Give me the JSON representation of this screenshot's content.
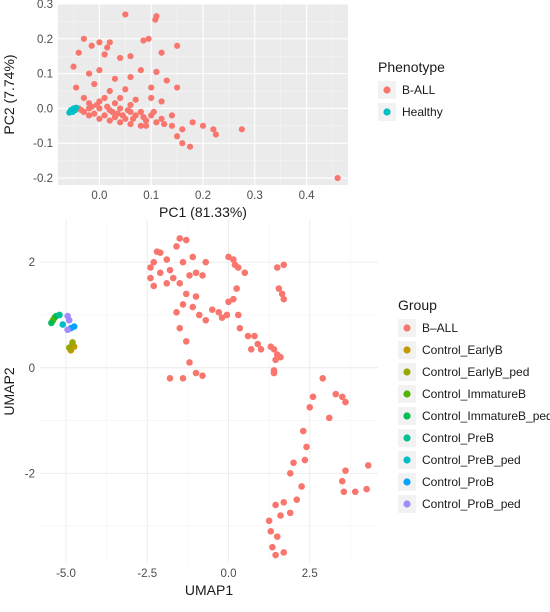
{
  "chart_data": [
    {
      "type": "scatter",
      "xlabel": "PC1 (81.33%)",
      "ylabel": "PC2 (7.74%)",
      "xlim": [
        -0.08,
        0.48
      ],
      "ylim": [
        -0.22,
        0.3
      ],
      "x_ticks": [
        0.0,
        0.1,
        0.2,
        0.3,
        0.4
      ],
      "x_tick_labels": [
        "0.0",
        "0.1",
        "0.2",
        "0.3",
        "0.4"
      ],
      "y_ticks": [
        -0.2,
        -0.1,
        0.0,
        0.1,
        0.2,
        0.3
      ],
      "y_tick_labels": [
        "-0.2",
        "-0.1",
        "0.0",
        "0.1",
        "0.2",
        "0.3"
      ],
      "grid": true,
      "legend": {
        "title": "Phenotype",
        "position": "right"
      },
      "series": [
        {
          "name": "B-ALL",
          "color": "#F8766D",
          "points": [
            [
              0.05,
              0.27
            ],
            [
              0.11,
              0.265
            ],
            [
              0.108,
              0.255
            ],
            [
              -0.03,
              0.2
            ],
            [
              0.0,
              0.19
            ],
            [
              0.02,
              0.19
            ],
            [
              -0.015,
              0.18
            ],
            [
              0.015,
              0.175
            ],
            [
              0.085,
              0.195
            ],
            [
              0.095,
              0.2
            ],
            [
              0.15,
              0.18
            ],
            [
              -0.04,
              0.16
            ],
            [
              0.01,
              0.155
            ],
            [
              0.04,
              0.145
            ],
            [
              0.06,
              0.15
            ],
            [
              0.12,
              0.16
            ],
            [
              0.08,
              0.11
            ],
            [
              0.11,
              0.105
            ],
            [
              -0.05,
              0.12
            ],
            [
              -0.02,
              0.1
            ],
            [
              0.0,
              0.11
            ],
            [
              0.03,
              0.085
            ],
            [
              0.06,
              0.09
            ],
            [
              0.13,
              0.08
            ],
            [
              -0.045,
              0.06
            ],
            [
              -0.01,
              0.07
            ],
            [
              0.02,
              0.05
            ],
            [
              0.05,
              0.055
            ],
            [
              0.1,
              0.06
            ],
            [
              0.15,
              0.06
            ],
            [
              -0.03,
              0.03
            ],
            [
              0.01,
              0.03
            ],
            [
              0.04,
              0.03
            ],
            [
              0.07,
              0.025
            ],
            [
              0.1,
              0.03
            ],
            [
              0.12,
              0.02
            ],
            [
              0.0,
              0.02
            ],
            [
              -0.02,
              0.015
            ],
            [
              0.03,
              0.015
            ],
            [
              0.06,
              0.01
            ],
            [
              -0.04,
              0.0
            ],
            [
              -0.02,
              0.0
            ],
            [
              0.0,
              0.0
            ],
            [
              0.02,
              -0.005
            ],
            [
              0.04,
              0.0
            ],
            [
              0.06,
              -0.01
            ],
            [
              0.08,
              -0.01
            ],
            [
              0.1,
              -0.02
            ],
            [
              0.12,
              -0.03
            ],
            [
              0.14,
              -0.02
            ],
            [
              -0.03,
              -0.01
            ],
            [
              -0.01,
              -0.015
            ],
            [
              0.01,
              -0.02
            ],
            [
              0.03,
              -0.025
            ],
            [
              0.05,
              -0.03
            ],
            [
              0.07,
              -0.02
            ],
            [
              0.09,
              -0.035
            ],
            [
              0.11,
              -0.04
            ],
            [
              -0.02,
              -0.02
            ],
            [
              0.0,
              -0.03
            ],
            [
              0.02,
              -0.035
            ],
            [
              0.04,
              -0.04
            ],
            [
              0.06,
              -0.045
            ],
            [
              0.08,
              -0.05
            ],
            [
              -0.015,
              0.005
            ],
            [
              -0.035,
              -0.005
            ],
            [
              0.015,
              0.005
            ],
            [
              0.035,
              -0.015
            ],
            [
              0.055,
              -0.005
            ],
            [
              0.025,
              -0.01
            ],
            [
              -0.005,
              0.01
            ],
            [
              0.045,
              -0.02
            ],
            [
              0.065,
              -0.03
            ],
            [
              0.085,
              -0.025
            ],
            [
              0.105,
              -0.01
            ],
            [
              0.125,
              -0.045
            ],
            [
              0.14,
              -0.05
            ],
            [
              0.16,
              -0.06
            ],
            [
              0.18,
              -0.04
            ],
            [
              0.2,
              -0.05
            ],
            [
              0.15,
              -0.08
            ],
            [
              0.16,
              -0.1
            ],
            [
              0.175,
              -0.11
            ],
            [
              0.22,
              -0.06
            ],
            [
              0.225,
              -0.075
            ],
            [
              0.275,
              -0.06
            ],
            [
              0.46,
              -0.2
            ],
            [
              0.09,
              -0.05
            ]
          ]
        },
        {
          "name": "Healthy",
          "color": "#00BFC4",
          "points": [
            [
              -0.055,
              -0.005
            ],
            [
              -0.05,
              0.0
            ],
            [
              -0.052,
              -0.01
            ],
            [
              -0.047,
              -0.005
            ],
            [
              -0.058,
              -0.012
            ],
            [
              -0.045,
              0.002
            ]
          ]
        }
      ]
    },
    {
      "type": "scatter",
      "xlabel": "UMAP1",
      "ylabel": "UMAP2",
      "xlim": [
        -5.8,
        4.6
      ],
      "ylim": [
        -3.7,
        2.8
      ],
      "x_ticks": [
        -5.0,
        -2.5,
        0.0,
        2.5
      ],
      "x_tick_labels": [
        "-5.0",
        "-2.5",
        "0.0",
        "2.5"
      ],
      "y_ticks": [
        -2,
        0,
        2
      ],
      "y_tick_labels": [
        "-2",
        "0",
        "2"
      ],
      "grid": true,
      "legend": {
        "title": "Group",
        "position": "right"
      },
      "series": [
        {
          "name": "B–ALL",
          "color": "#F8766D",
          "points": [
            [
              -2.2,
              2.2
            ],
            [
              -2.1,
              2.18
            ],
            [
              -1.5,
              2.45
            ],
            [
              -1.3,
              2.42
            ],
            [
              -1.6,
              2.3
            ],
            [
              -1.9,
              2.05
            ],
            [
              -2.3,
              2.0
            ],
            [
              -2.4,
              1.9
            ],
            [
              -1.8,
              1.85
            ],
            [
              -1.4,
              2.0
            ],
            [
              -1.1,
              2.1
            ],
            [
              -0.7,
              2.0
            ],
            [
              -2.1,
              1.8
            ],
            [
              -2.4,
              1.7
            ],
            [
              -1.7,
              1.7
            ],
            [
              -1.2,
              1.75
            ],
            [
              -1.0,
              1.8
            ],
            [
              -1.5,
              1.6
            ],
            [
              -2.3,
              1.55
            ],
            [
              -1.9,
              1.6
            ],
            [
              -0.8,
              1.75
            ],
            [
              -1.3,
              1.4
            ],
            [
              -1.0,
              1.35
            ],
            [
              -1.4,
              1.2
            ],
            [
              -1.1,
              1.15
            ],
            [
              -1.6,
              1.05
            ],
            [
              -0.9,
              1.0
            ],
            [
              -0.5,
              1.1
            ],
            [
              -0.3,
              1.05
            ],
            [
              -0.7,
              0.9
            ],
            [
              -0.2,
              0.95
            ],
            [
              -0.05,
              1.0
            ],
            [
              -1.5,
              0.75
            ],
            [
              -1.3,
              0.5
            ],
            [
              -1.2,
              0.1
            ],
            [
              -1.4,
              -0.2
            ],
            [
              -1.8,
              -0.2
            ],
            [
              -0.8,
              -0.15
            ],
            [
              -1.0,
              -0.1
            ],
            [
              0.0,
              2.1
            ],
            [
              0.15,
              2.05
            ],
            [
              0.2,
              1.95
            ],
            [
              0.3,
              1.9
            ],
            [
              0.5,
              1.8
            ],
            [
              0.25,
              1.5
            ],
            [
              0.15,
              1.3
            ],
            [
              0.0,
              1.25
            ],
            [
              0.3,
              1.0
            ],
            [
              0.35,
              0.75
            ],
            [
              0.6,
              0.6
            ],
            [
              0.8,
              0.6
            ],
            [
              0.7,
              0.35
            ],
            [
              1.0,
              0.35
            ],
            [
              0.9,
              0.45
            ],
            [
              1.3,
              0.4
            ],
            [
              1.4,
              0.35
            ],
            [
              1.45,
              0.15
            ],
            [
              1.5,
              0.25
            ],
            [
              1.6,
              0.2
            ],
            [
              1.5,
              1.9
            ],
            [
              1.7,
              1.95
            ],
            [
              1.55,
              1.5
            ],
            [
              1.65,
              1.4
            ],
            [
              1.7,
              1.3
            ],
            [
              1.4,
              -0.05
            ],
            [
              1.4,
              -0.1
            ],
            [
              2.9,
              -0.2
            ],
            [
              2.6,
              -0.55
            ],
            [
              2.5,
              -0.75
            ],
            [
              3.3,
              -0.5
            ],
            [
              3.5,
              -0.55
            ],
            [
              3.6,
              -0.65
            ],
            [
              3.1,
              -0.95
            ],
            [
              2.3,
              -1.2
            ],
            [
              2.4,
              -1.5
            ],
            [
              2.35,
              -1.75
            ],
            [
              2.25,
              -2.25
            ],
            [
              2.0,
              -1.8
            ],
            [
              1.9,
              -2.0
            ],
            [
              2.1,
              -2.5
            ],
            [
              1.9,
              -2.75
            ],
            [
              1.6,
              -2.8
            ],
            [
              1.7,
              -2.55
            ],
            [
              1.25,
              -2.9
            ],
            [
              1.45,
              -2.6
            ],
            [
              1.3,
              -3.1
            ],
            [
              1.5,
              -3.2
            ],
            [
              1.35,
              -3.4
            ],
            [
              1.45,
              -3.55
            ],
            [
              1.7,
              -3.5
            ],
            [
              3.6,
              -1.95
            ],
            [
              3.5,
              -2.15
            ],
            [
              3.55,
              -2.35
            ],
            [
              3.9,
              -2.35
            ],
            [
              4.3,
              -1.85
            ],
            [
              4.25,
              -2.3
            ]
          ]
        },
        {
          "name": "Control_EarlyB",
          "color": "#C49A00",
          "points": [
            [
              -4.85,
              0.33
            ],
            [
              -4.75,
              0.4
            ],
            [
              -4.8,
              0.45
            ]
          ]
        },
        {
          "name": "Control_EarlyB_ped",
          "color": "#99A800",
          "points": [
            [
              -4.9,
              0.38
            ],
            [
              -4.8,
              0.48
            ]
          ]
        },
        {
          "name": "Control_ImmatureB",
          "color": "#53B400",
          "points": [
            [
              -5.4,
              0.9
            ],
            [
              -5.35,
              0.95
            ]
          ]
        },
        {
          "name": "Control_ImmatureB_ped",
          "color": "#00BC56",
          "points": [
            [
              -5.45,
              0.85
            ],
            [
              -5.3,
              0.98
            ]
          ]
        },
        {
          "name": "Control_PreB",
          "color": "#00C094",
          "points": [
            [
              -5.2,
              1.0
            ]
          ]
        },
        {
          "name": "Control_PreB_ped",
          "color": "#00BFC4",
          "points": [
            [
              -5.1,
              0.82
            ]
          ]
        },
        {
          "name": "Control_ProB",
          "color": "#06A4FF",
          "points": [
            [
              -4.85,
              0.75
            ],
            [
              -4.75,
              0.78
            ]
          ]
        },
        {
          "name": "Control_ProB_ped",
          "color": "#A58AFF",
          "points": [
            [
              -4.95,
              0.98
            ],
            [
              -4.9,
              0.9
            ],
            [
              -4.95,
              0.72
            ]
          ]
        }
      ]
    }
  ]
}
